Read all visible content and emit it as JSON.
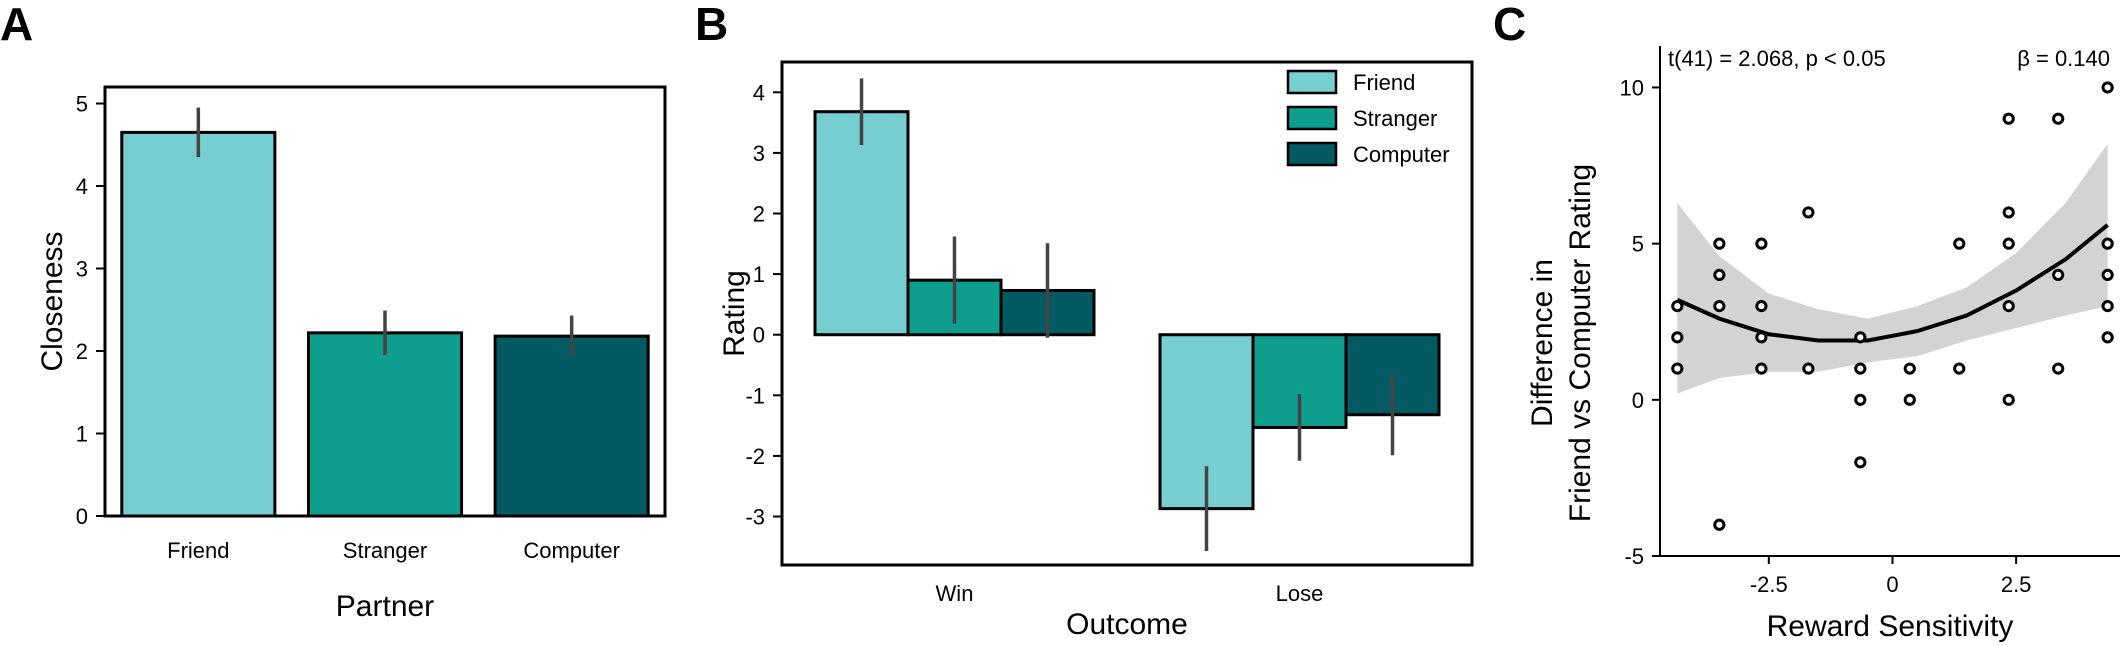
{
  "chart_data": [
    {
      "panel": "A",
      "type": "bar",
      "xlabel": "Partner",
      "ylabel": "Closeness",
      "ylim": [
        0,
        5.2
      ],
      "yticks": [
        "0",
        "1",
        "2",
        "3",
        "4",
        "5"
      ],
      "categories": [
        "Friend",
        "Stranger",
        "Computer"
      ],
      "values": [
        4.65,
        2.22,
        2.18
      ],
      "errors": [
        0.3,
        0.27,
        0.25
      ],
      "colors": [
        "#76CED1",
        "#0E9E8E",
        "#035A62"
      ]
    },
    {
      "panel": "B",
      "type": "bar",
      "xlabel": "Outcome",
      "ylabel": "Rating",
      "ylim": [
        -3.8,
        4.5
      ],
      "yticks": [
        "-3",
        "-2",
        "-1",
        "0",
        "1",
        "2",
        "3",
        "4"
      ],
      "categories": [
        "Win",
        "Lose"
      ],
      "legend_position": "top-right",
      "series": [
        {
          "name": "Friend",
          "color": "#76CED1",
          "values": [
            3.68,
            -2.87
          ],
          "errors": [
            0.55,
            0.7
          ]
        },
        {
          "name": "Stranger",
          "color": "#0E9E8E",
          "values": [
            0.9,
            -1.53
          ],
          "errors": [
            0.72,
            0.55
          ]
        },
        {
          "name": "Computer",
          "color": "#035A62",
          "values": [
            0.73,
            -1.32
          ],
          "errors": [
            0.78,
            0.67
          ]
        }
      ]
    },
    {
      "panel": "C",
      "type": "scatter",
      "xlabel": "Reward Sensitivity",
      "ylabel_line1": "Difference in",
      "ylabel_line2": "Friend vs Computer Rating",
      "xlim": [
        -4.7,
        4.6
      ],
      "ylim": [
        -5,
        11.2
      ],
      "xticks": [
        "-2.5",
        "0",
        "2.5"
      ],
      "yticks": [
        "-5",
        "0",
        "5",
        "10"
      ],
      "annotation_left": "t(41) = 2.068, p < 0.05",
      "annotation_right": "β = 0.140",
      "points": [
        [
          -4.35,
          3
        ],
        [
          -4.35,
          2
        ],
        [
          -4.35,
          1
        ],
        [
          -3.5,
          5
        ],
        [
          -3.5,
          4
        ],
        [
          -3.5,
          3
        ],
        [
          -3.5,
          -4
        ],
        [
          -2.65,
          5
        ],
        [
          -2.65,
          3
        ],
        [
          -2.65,
          2
        ],
        [
          -2.65,
          1
        ],
        [
          -1.7,
          6
        ],
        [
          -1.7,
          1
        ],
        [
          -0.65,
          2
        ],
        [
          -0.65,
          1
        ],
        [
          -0.65,
          0
        ],
        [
          -0.65,
          -2
        ],
        [
          0.35,
          1
        ],
        [
          0.35,
          0
        ],
        [
          1.35,
          5
        ],
        [
          1.35,
          1
        ],
        [
          2.35,
          9
        ],
        [
          2.35,
          6
        ],
        [
          2.35,
          5
        ],
        [
          2.35,
          3
        ],
        [
          2.35,
          0
        ],
        [
          3.35,
          9
        ],
        [
          3.35,
          4
        ],
        [
          3.35,
          1
        ],
        [
          4.35,
          10
        ],
        [
          4.35,
          5
        ],
        [
          4.35,
          4
        ],
        [
          4.35,
          3
        ],
        [
          4.35,
          2
        ]
      ],
      "fit": {
        "x": [
          -4.35,
          -3.5,
          -2.5,
          -1.5,
          -0.5,
          0.5,
          1.5,
          2.5,
          3.5,
          4.35
        ],
        "y": [
          3.2,
          2.6,
          2.1,
          1.9,
          1.9,
          2.2,
          2.7,
          3.5,
          4.5,
          5.6
        ],
        "ci_upper": [
          6.3,
          4.6,
          3.4,
          2.9,
          2.6,
          3.0,
          3.6,
          4.7,
          6.3,
          8.2
        ],
        "ci_lower": [
          0.2,
          0.7,
          0.9,
          0.9,
          1.2,
          1.4,
          1.9,
          2.3,
          2.7,
          3.0
        ]
      }
    }
  ]
}
